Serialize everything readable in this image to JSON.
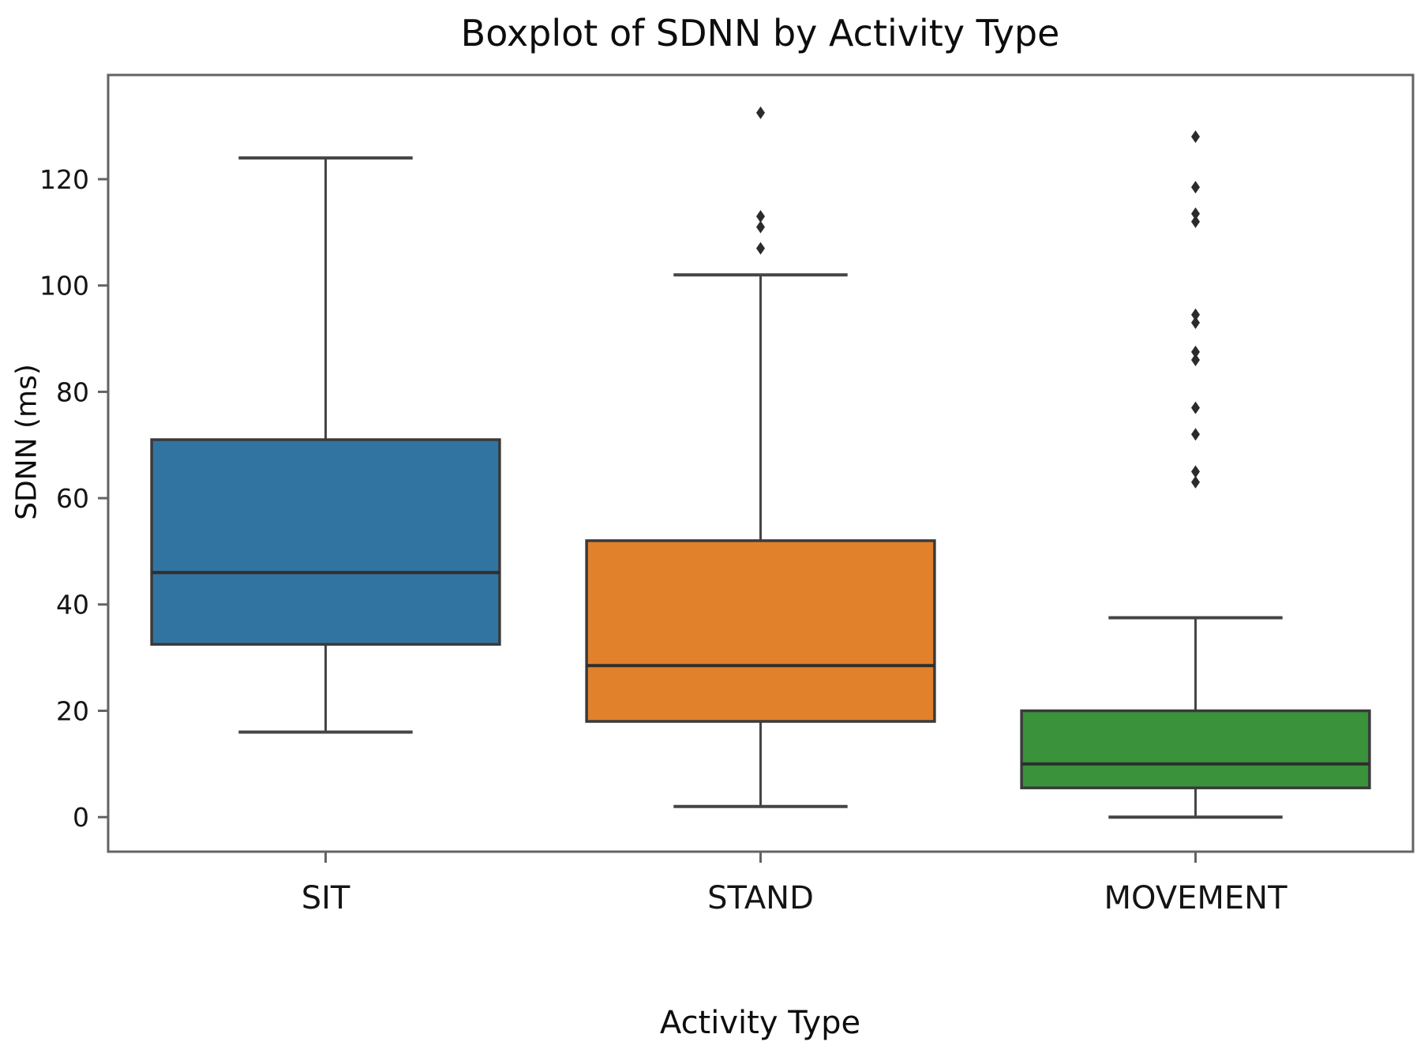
{
  "chart_data": {
    "type": "boxplot",
    "title": "Boxplot of SDNN by Activity Type",
    "xlabel": "Activity Type",
    "ylabel": "SDNN (ms)",
    "categories": [
      "SIT",
      "STAND",
      "MOVEMENT"
    ],
    "yticks": [
      0,
      20,
      40,
      60,
      80,
      100,
      120
    ],
    "ylim": [
      -6.5,
      139.6
    ],
    "box_width_fraction": 0.8,
    "cap_width_fraction": 0.4,
    "grid": false,
    "legend": "none",
    "series": [
      {
        "name": "SIT",
        "color": "#3274a1",
        "whisker_low": 16,
        "q1": 32.5,
        "median": 46,
        "q3": 71,
        "whisker_high": 124,
        "outliers": []
      },
      {
        "name": "STAND",
        "color": "#e1812c",
        "whisker_low": 2,
        "q1": 18,
        "median": 28.5,
        "q3": 52,
        "whisker_high": 102,
        "outliers": [
          107,
          111,
          113,
          132.5
        ]
      },
      {
        "name": "MOVEMENT",
        "color": "#3a923a",
        "whisker_low": 0,
        "q1": 5.5,
        "median": 10,
        "q3": 20,
        "whisker_high": 37.5,
        "outliers": [
          63,
          65,
          72,
          77,
          86,
          87.5,
          93,
          94.5,
          112,
          113.5,
          118.5,
          128
        ]
      }
    ],
    "colors": {
      "box_edge": "#3a3a3a",
      "median_line": "#2e2e2e",
      "whisker": "#454545",
      "outlier": "#2b2b2b",
      "spine": "#636363",
      "text": "#141414"
    }
  }
}
